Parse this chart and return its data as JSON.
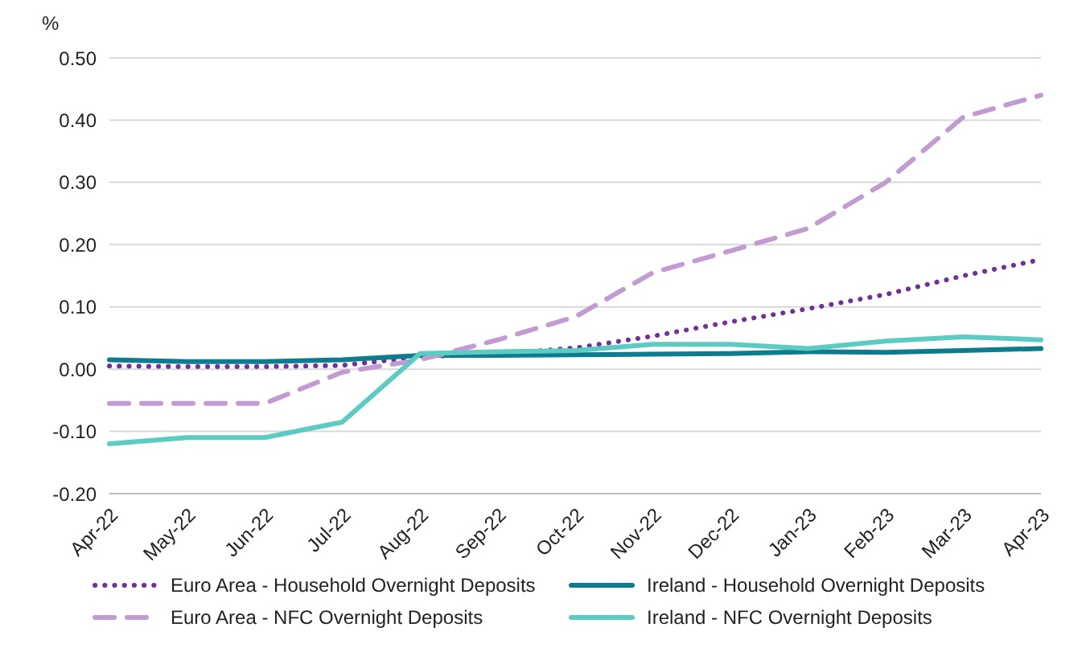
{
  "chart_data": {
    "type": "line",
    "ylabel": "%",
    "categories": [
      "Apr-22",
      "May-22",
      "Jun-22",
      "Jul-22",
      "Aug-22",
      "Sep-22",
      "Oct-22",
      "Nov-22",
      "Dec-22",
      "Jan-23",
      "Feb-23",
      "Mar-23",
      "Apr-23"
    ],
    "series": [
      {
        "name": "Euro Area -  Household Overnight Deposits",
        "color": "#7030a0",
        "line_style": "dotted",
        "values": [
          0.005,
          0.004,
          0.004,
          0.006,
          0.02,
          0.024,
          0.034,
          0.053,
          0.076,
          0.097,
          0.12,
          0.15,
          0.176
        ]
      },
      {
        "name": "Ireland - Household Overnight Deposits",
        "color": "#0e7c8f",
        "line_style": "solid",
        "values": [
          0.015,
          0.012,
          0.012,
          0.015,
          0.022,
          0.022,
          0.023,
          0.024,
          0.025,
          0.028,
          0.027,
          0.03,
          0.033
        ]
      },
      {
        "name": "Euro Area - NFC Overnight Deposits",
        "color": "#c39bd3",
        "line_style": "dashed",
        "values": [
          -0.055,
          -0.055,
          -0.055,
          -0.005,
          0.015,
          0.047,
          0.084,
          0.155,
          0.19,
          0.226,
          0.3,
          0.405,
          0.44
        ]
      },
      {
        "name": "Ireland -  NFC Overnight Deposits",
        "color": "#5ccbc1",
        "line_style": "solid",
        "values": [
          -0.12,
          -0.11,
          -0.11,
          -0.085,
          0.025,
          0.028,
          0.03,
          0.04,
          0.04,
          0.033,
          0.045,
          0.052,
          0.047
        ]
      }
    ],
    "ylim": [
      -0.2,
      0.5
    ],
    "yticks": [
      {
        "value": -0.2,
        "label": "-0.20"
      },
      {
        "value": -0.1,
        "label": "-0.10"
      },
      {
        "value": 0,
        "label": "0.00"
      },
      {
        "value": 0.1,
        "label": "0.10"
      },
      {
        "value": 0.2,
        "label": "0.20"
      },
      {
        "value": 0.3,
        "label": "0.30"
      },
      {
        "value": 0.4,
        "label": "0.40"
      },
      {
        "value": 0.5,
        "label": "0.50"
      }
    ],
    "grid": "y",
    "legend": "bottom",
    "marker": "none"
  }
}
